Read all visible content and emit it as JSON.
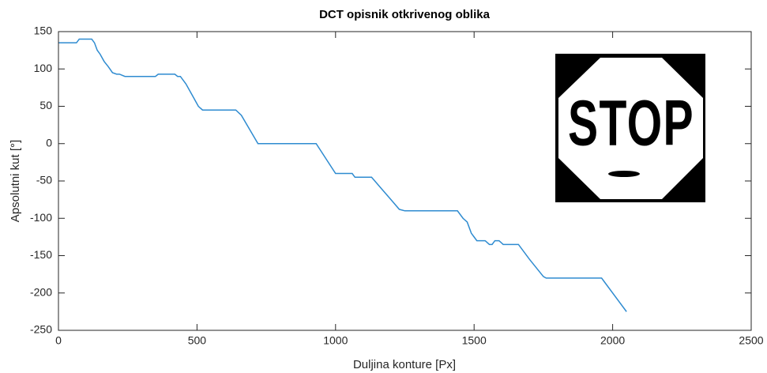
{
  "chart_data": {
    "type": "line",
    "title": "DCT opisnik otkrivenog oblika",
    "x_label": "Duljina konture [Px]",
    "y_label": "Apsolutni kut [°]",
    "inset_label": "STOP",
    "color": "#2e8bd0",
    "x": [
      0,
      65,
      75,
      120,
      130,
      140,
      150,
      165,
      180,
      195,
      210,
      220,
      240,
      350,
      360,
      420,
      430,
      440,
      460,
      490,
      505,
      520,
      640,
      660,
      720,
      930,
      1000,
      1060,
      1070,
      1130,
      1165,
      1200,
      1230,
      1250,
      1440,
      1460,
      1475,
      1490,
      1500,
      1510,
      1540,
      1555,
      1565,
      1575,
      1590,
      1605,
      1660,
      1700,
      1750,
      1760,
      1960,
      2050
    ],
    "values": [
      135,
      135,
      140,
      140,
      135,
      125,
      120,
      110,
      103,
      95,
      93,
      93,
      90,
      90,
      93,
      93,
      90,
      90,
      80,
      60,
      50,
      45,
      45,
      38,
      0,
      0,
      -40,
      -40,
      -45,
      -45,
      -60,
      -75,
      -88,
      -90,
      -90,
      -100,
      -105,
      -120,
      -125,
      -130,
      -130,
      -135,
      -135,
      -130,
      -130,
      -135,
      -135,
      -155,
      -178,
      -180,
      -180,
      -225
    ],
    "xlim": [
      0,
      2500
    ],
    "xticks": [
      0,
      500,
      1000,
      1500,
      2000,
      2500
    ],
    "ylim": [
      -250,
      150
    ],
    "yticks": [
      -250,
      -200,
      -150,
      -100,
      -50,
      0,
      50,
      100,
      150
    ]
  }
}
